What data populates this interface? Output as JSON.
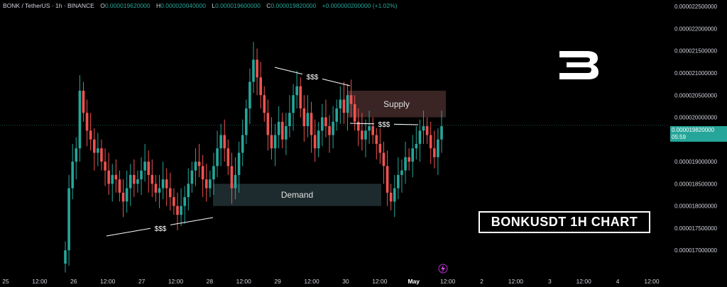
{
  "header": {
    "symbol": "BONK / TetherUS · 1h · BINANCE",
    "open_label": "O",
    "open": "0.000019620000",
    "high_label": "H",
    "high": "0.000020040000",
    "low_label": "L",
    "low": "0.000019600000",
    "close_label": "C",
    "close": "0.000019820000",
    "change": "+0.000000200000 (+1.02%)"
  },
  "current_price": {
    "value": "0.000019820000",
    "countdown": "05:59"
  },
  "zones": {
    "supply_label": "Supply",
    "demand_label": "Demand",
    "liquidity_label": "$$$"
  },
  "overlay_title": "BONKUSDT 1H CHART",
  "colors": {
    "up": "#26a69a",
    "down": "#ef5350",
    "supply_zone": "#3a2424",
    "demand_zone": "#1e2b2e",
    "text": "#d1d4dc",
    "background": "#000000"
  },
  "chart_data": {
    "type": "candlestick",
    "symbol": "BONKUSDT",
    "interval": "1h",
    "ylim": [
      1.67e-05,
      2.255e-05
    ],
    "y_ticks": [
      "0.000022500000",
      "0.000022000000",
      "0.000021500000",
      "0.000021000000",
      "0.000020500000",
      "0.000020000000",
      "0.000019500000",
      "0.000019000000",
      "0.000018500000",
      "0.000018000000",
      "0.000017500000",
      "0.000017000000"
    ],
    "x_ticks": [
      "25",
      "12:00",
      "26",
      "12:00",
      "27",
      "12:00",
      "28",
      "12:00",
      "29",
      "12:00",
      "30",
      "12:00",
      "May",
      "12:00",
      "2",
      "12:00",
      "3",
      "12:00",
      "4",
      "12:00"
    ],
    "zones": [
      {
        "name": "Supply",
        "type": "supply",
        "y_from": 2e-05,
        "y_to": 2.06e-05
      },
      {
        "name": "Demand",
        "type": "demand",
        "y_from": 1.8e-05,
        "y_to": 1.85e-05
      }
    ],
    "closes": [
      1.7e-05,
      1.84e-05,
      1.9e-05,
      1.93e-05,
      2.06e-05,
      2.01e-05,
      1.97e-05,
      1.95e-05,
      1.92e-05,
      1.93e-05,
      1.9e-05,
      1.88e-05,
      1.85e-05,
      1.87e-05,
      1.86e-05,
      1.83e-05,
      1.81e-05,
      1.84e-05,
      1.87e-05,
      1.85e-05,
      1.86e-05,
      1.88e-05,
      1.9e-05,
      1.87e-05,
      1.85e-05,
      1.83e-05,
      1.84e-05,
      1.86e-05,
      1.84e-05,
      1.82e-05,
      1.8e-05,
      1.78e-05,
      1.8e-05,
      1.82e-05,
      1.85e-05,
      1.88e-05,
      1.9e-05,
      1.89e-05,
      1.86e-05,
      1.84e-05,
      1.86e-05,
      1.89e-05,
      1.93e-05,
      1.96e-05,
      1.93e-05,
      1.89e-05,
      1.84e-05,
      1.87e-05,
      1.92e-05,
      1.96e-05,
      2.02e-05,
      2.08e-05,
      2.13e-05,
      2.09e-05,
      2.05e-05,
      2.01e-05,
      1.96e-05,
      1.93e-05,
      1.96e-05,
      1.99e-05,
      1.95e-05,
      1.98e-05,
      2.01e-05,
      2.05e-05,
      2.07e-05,
      2.02e-05,
      1.98e-05,
      2.01e-05,
      1.96e-05,
      1.93e-05,
      1.97e-05,
      2e-05,
      1.98e-05,
      1.96e-05,
      1.99e-05,
      2.02e-05,
      2.04e-05,
      2.01e-05,
      2.05e-05,
      2.03e-05,
      1.99e-05,
      1.97e-05,
      1.95e-05,
      1.97e-05,
      1.98e-05,
      1.96e-05,
      1.94e-05,
      1.92e-05,
      1.89e-05,
      1.83e-05,
      1.81e-05,
      1.84e-05,
      1.87e-05,
      1.88e-05,
      1.91e-05,
      1.9e-05,
      1.93e-05,
      1.94e-05,
      1.97e-05,
      1.98e-05,
      1.96e-05,
      1.93e-05,
      1.91e-05,
      1.95e-05,
      1.98e-05
    ]
  }
}
